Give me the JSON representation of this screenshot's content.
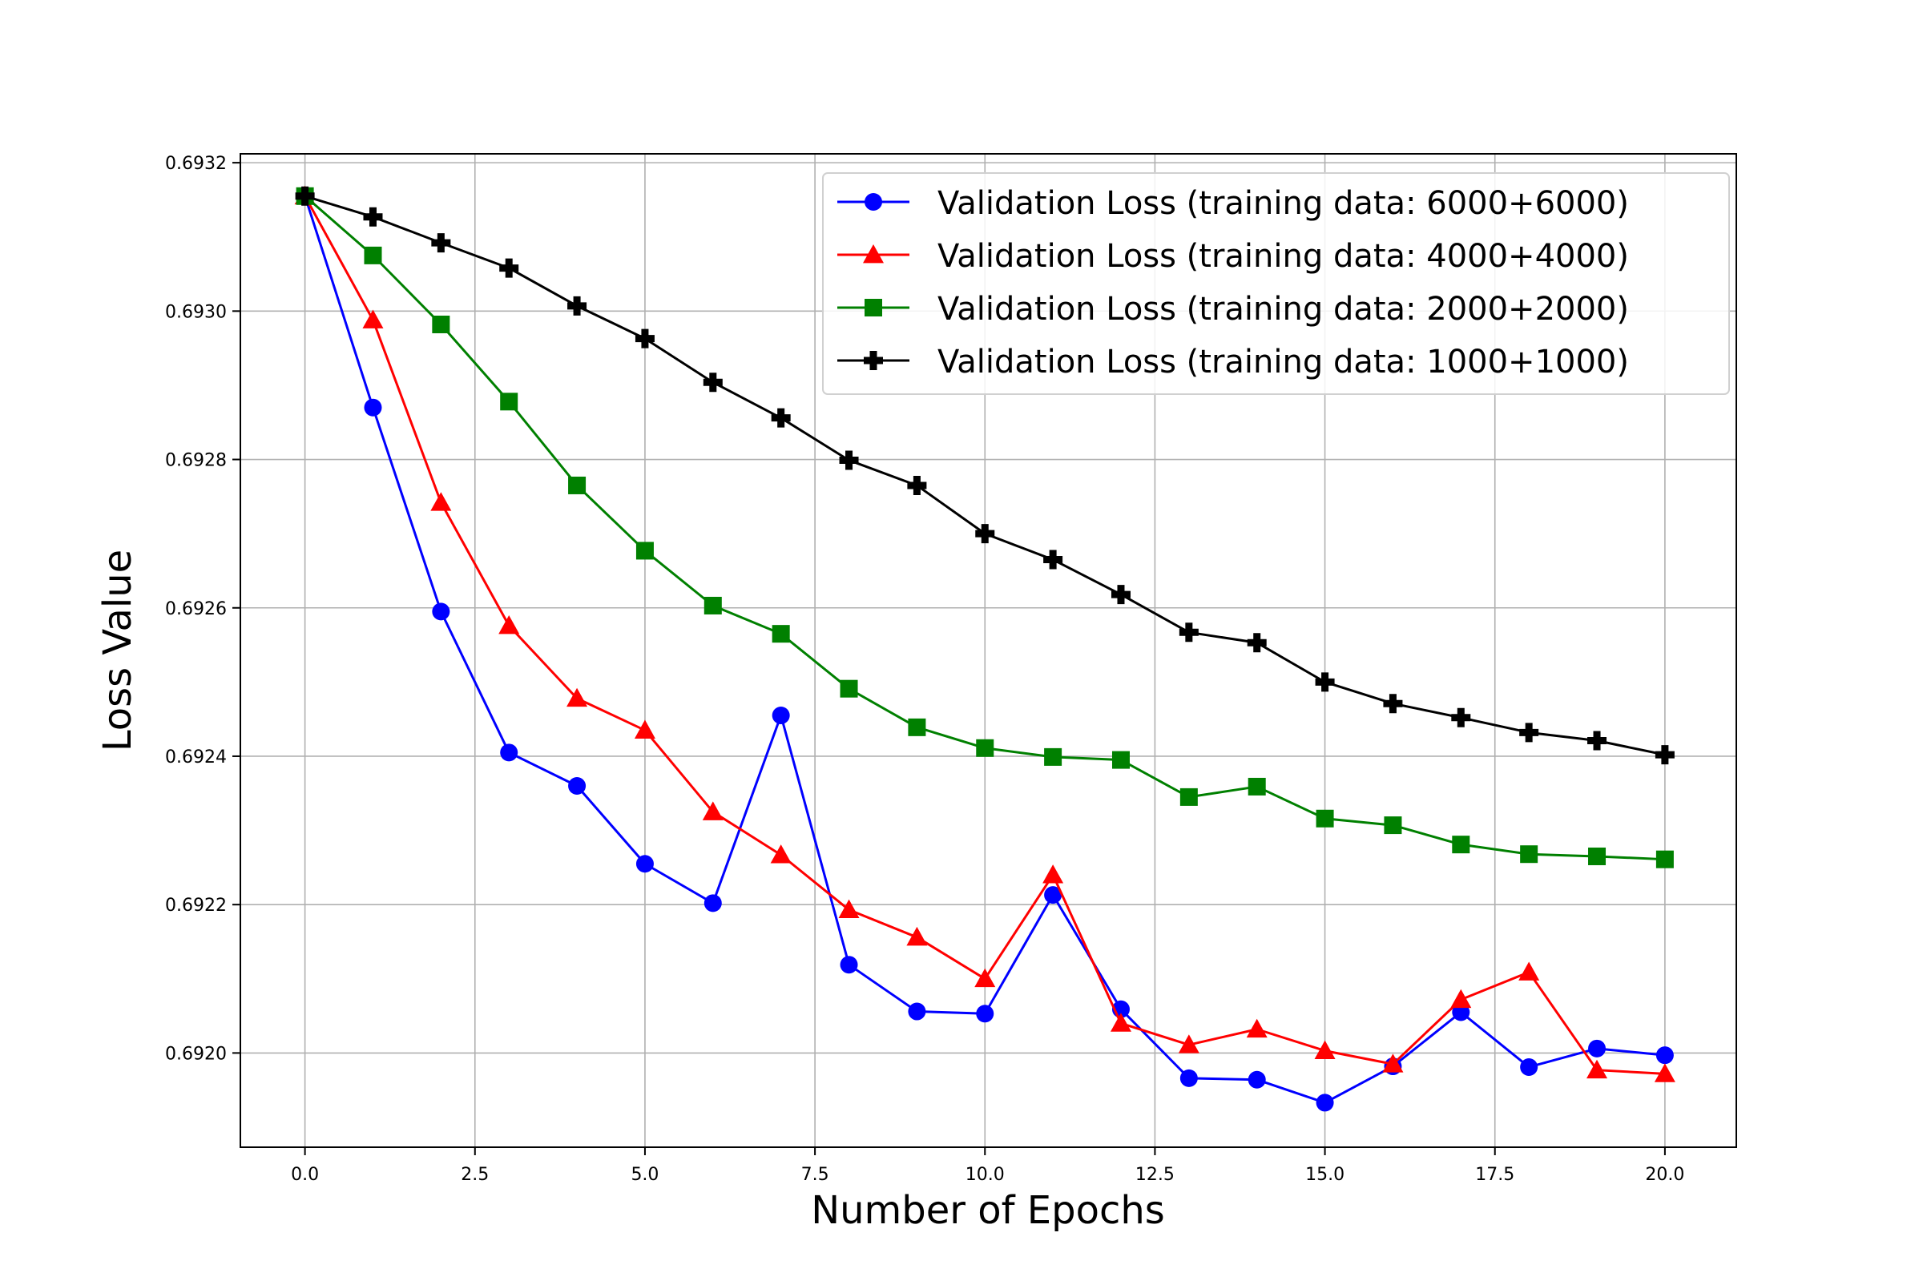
{
  "chart_data": {
    "type": "line",
    "title": "",
    "xlabel": "Number of Epochs",
    "ylabel": "Loss Value",
    "xlim": [
      -0.95,
      21.05
    ],
    "ylim": [
      0.691873,
      0.693212
    ],
    "x_ticks": [
      0.0,
      2.5,
      5.0,
      7.5,
      10.0,
      12.5,
      15.0,
      17.5,
      20.0
    ],
    "x_tick_labels": [
      "0.0",
      "2.5",
      "5.0",
      "7.5",
      "10.0",
      "12.5",
      "15.0",
      "17.5",
      "20.0"
    ],
    "y_ticks": [
      0.692,
      0.6922,
      0.6924,
      0.6926,
      0.6928,
      0.693,
      0.6932
    ],
    "y_tick_labels": [
      "0.6920",
      "0.6922",
      "0.6924",
      "0.6926",
      "0.6928",
      "0.6930",
      "0.6932"
    ],
    "grid": true,
    "legend_position": "top-right",
    "x": [
      0,
      1,
      2,
      3,
      4,
      5,
      6,
      7,
      8,
      9,
      10,
      11,
      12,
      13,
      14,
      15,
      16,
      17,
      18,
      19,
      20
    ],
    "series": [
      {
        "name": "Validation Loss (training data: 6000+6000)",
        "color": "#0000ff",
        "marker": "circle",
        "values": [
          0.693155,
          0.69287,
          0.692595,
          0.692405,
          0.69236,
          0.692255,
          0.692202,
          0.692455,
          0.692119,
          0.692056,
          0.692053,
          0.692213,
          0.692059,
          0.691966,
          0.691964,
          0.691933,
          0.691982,
          0.692055,
          0.691981,
          0.692006,
          0.691997
        ]
      },
      {
        "name": "Validation Loss (training data: 4000+4000)",
        "color": "#ff0000",
        "marker": "triangle",
        "values": [
          0.693155,
          0.692988,
          0.692742,
          0.692576,
          0.692478,
          0.692435,
          0.692325,
          0.692267,
          0.692193,
          0.692156,
          0.6921,
          0.69224,
          0.69204,
          0.692011,
          0.692032,
          0.692003,
          0.691985,
          0.692072,
          0.692109,
          0.691977,
          0.691972
        ]
      },
      {
        "name": "Validation Loss (training data: 2000+2000)",
        "color": "#008000",
        "marker": "square",
        "values": [
          0.693155,
          0.693075,
          0.692982,
          0.692878,
          0.692765,
          0.692677,
          0.692603,
          0.692565,
          0.692491,
          0.692439,
          0.692411,
          0.692399,
          0.692395,
          0.692345,
          0.692359,
          0.692316,
          0.692307,
          0.692281,
          0.692268,
          0.692265,
          0.692261
        ]
      },
      {
        "name": "Validation Loss (training data: 1000+1000)",
        "color": "#000000",
        "marker": "plus",
        "values": [
          0.693155,
          0.693127,
          0.693092,
          0.693058,
          0.693007,
          0.692963,
          0.692904,
          0.692856,
          0.692799,
          0.692765,
          0.6927,
          0.692665,
          0.692618,
          0.692567,
          0.692553,
          0.6925,
          0.692471,
          0.692452,
          0.692432,
          0.692421,
          0.692402
        ]
      }
    ]
  }
}
